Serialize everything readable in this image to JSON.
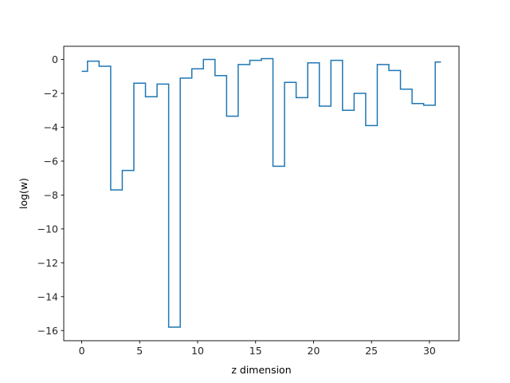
{
  "chart_data": {
    "type": "line",
    "drawstyle": "steps-mid",
    "xlabel": "z dimension",
    "ylabel": "log(w)",
    "xlim": [
      -1.55,
      32.55
    ],
    "ylim": [
      -16.6,
      0.78
    ],
    "xticks": [
      0,
      5,
      10,
      15,
      20,
      25,
      30
    ],
    "yticks": [
      0,
      -2,
      -4,
      -6,
      -8,
      -10,
      -12,
      -14,
      -16
    ],
    "grid": false,
    "series": [
      {
        "color": "#1f77b4",
        "x": [
          0,
          1,
          2,
          3,
          4,
          5,
          6,
          7,
          8,
          9,
          10,
          11,
          12,
          13,
          14,
          15,
          16,
          17,
          18,
          19,
          20,
          21,
          22,
          23,
          24,
          25,
          26,
          27,
          28,
          29,
          30,
          31
        ],
        "values": [
          -0.7,
          -0.1,
          -0.4,
          -7.7,
          -6.55,
          -1.4,
          -2.2,
          -1.45,
          -15.8,
          -1.1,
          -0.55,
          0.0,
          -0.95,
          -3.35,
          -0.3,
          -0.05,
          0.05,
          -6.3,
          -1.35,
          -2.25,
          -0.2,
          -2.75,
          -0.05,
          -3.0,
          -2.0,
          -3.9,
          -0.3,
          -0.65,
          -1.75,
          -2.6,
          -2.7,
          -0.15
        ]
      }
    ]
  }
}
